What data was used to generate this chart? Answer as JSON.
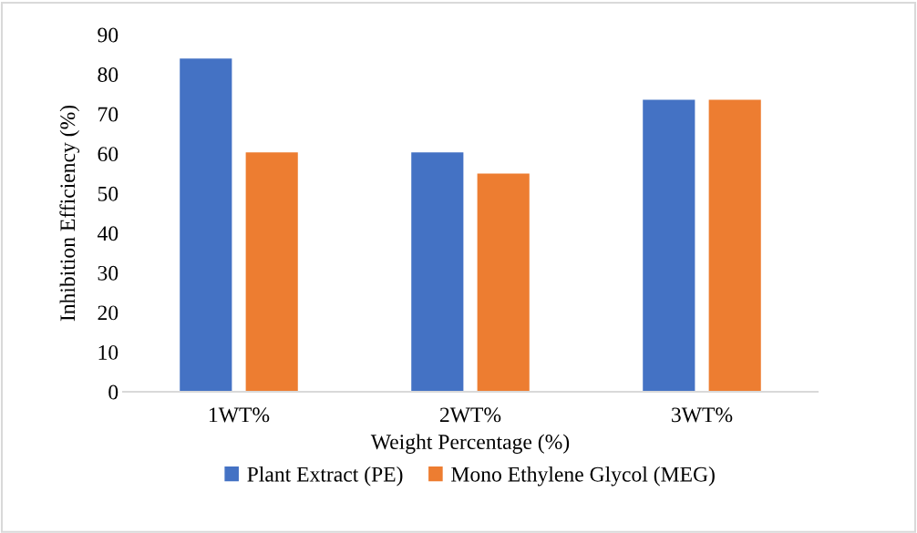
{
  "chart_data": {
    "type": "bar",
    "xlabel": "Weight Percentage (%)",
    "ylabel": "Inhibition Efficiency (%)",
    "categories": [
      "1WT%",
      "2WT%",
      "3WT%"
    ],
    "series": [
      {
        "name": "Plant Extract (PE)",
        "color": "#4472c4",
        "values": [
          84,
          60.3,
          73.6
        ]
      },
      {
        "name": "Mono Ethylene Glycol (MEG)",
        "color": "#ed7d31",
        "values": [
          60.3,
          55,
          73.6
        ]
      }
    ],
    "ylim": [
      0,
      90
    ],
    "yticks": [
      0,
      10,
      20,
      30,
      40,
      50,
      60,
      70,
      80,
      90
    ],
    "grid": false,
    "legend": "bottom"
  }
}
